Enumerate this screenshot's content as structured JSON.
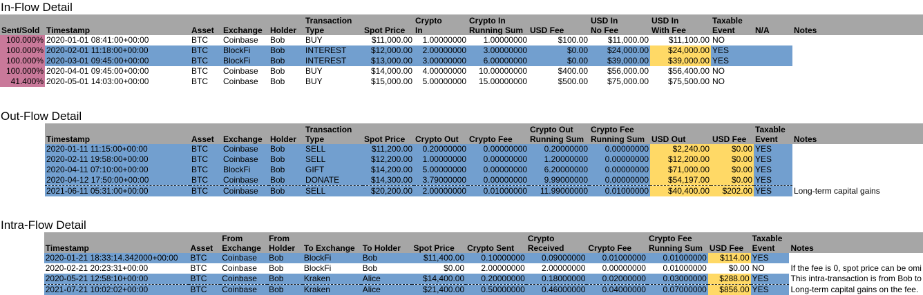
{
  "inflow": {
    "title": "In-Flow Detail",
    "headers": {
      "sent_sold": "Sent/Sold",
      "timestamp": "Timestamp",
      "asset": "Asset",
      "exchange": "Exchange",
      "holder": "Holder",
      "tx_type_1": "Transaction",
      "tx_type_2": "Type",
      "spot_price": "Spot Price",
      "crypto_in_1": "Crypto",
      "crypto_in_2": "In",
      "running_1": "Crypto In",
      "running_2": "Running Sum",
      "usd_fee": "USD Fee",
      "usd_in_nofee_1": "USD In",
      "usd_in_nofee_2": "No Fee",
      "usd_in_fee_1": "USD In",
      "usd_in_fee_2": "With Fee",
      "taxable_1": "Taxable",
      "taxable_2": "Event",
      "na": "N/A",
      "notes": "Notes"
    },
    "rows": [
      {
        "sent": "100.000%",
        "ts": "2020-01-01 08:41:00+00:00",
        "asset": "BTC",
        "exchange": "Coinbase",
        "holder": "Bob",
        "type": "BUY",
        "spot": "$11,000.00",
        "crypto": "1.00000000",
        "running": "1.00000000",
        "fee": "$100.00",
        "nofee": "$11,000.00",
        "withfee": "$11,100.00",
        "taxable": "NO"
      },
      {
        "sent": "100.000%",
        "ts": "2020-02-01 11:18:00+00:00",
        "asset": "BTC",
        "exchange": "BlockFi",
        "holder": "Bob",
        "type": "INTEREST",
        "spot": "$12,000.00",
        "crypto": "2.00000000",
        "running": "3.00000000",
        "fee": "$0.00",
        "nofee": "$24,000.00",
        "withfee": "$24,000.00",
        "taxable": "YES"
      },
      {
        "sent": "100.000%",
        "ts": "2020-03-01 09:45:00+00:00",
        "asset": "BTC",
        "exchange": "BlockFi",
        "holder": "Bob",
        "type": "INTEREST",
        "spot": "$13,000.00",
        "crypto": "3.00000000",
        "running": "6.00000000",
        "fee": "$0.00",
        "nofee": "$39,000.00",
        "withfee": "$39,000.00",
        "taxable": "YES"
      },
      {
        "sent": "100.000%",
        "ts": "2020-04-01 09:45:00+00:00",
        "asset": "BTC",
        "exchange": "Coinbase",
        "holder": "Bob",
        "type": "BUY",
        "spot": "$14,000.00",
        "crypto": "4.00000000",
        "running": "10.00000000",
        "fee": "$400.00",
        "nofee": "$56,000.00",
        "withfee": "$56,400.00",
        "taxable": "NO"
      },
      {
        "sent": "41.400%",
        "ts": "2020-05-01 14:03:00+00:00",
        "asset": "BTC",
        "exchange": "Coinbase",
        "holder": "Bob",
        "type": "BUY",
        "spot": "$15,000.00",
        "crypto": "5.00000000",
        "running": "15.00000000",
        "fee": "$500.00",
        "nofee": "$75,000.00",
        "withfee": "$75,500.00",
        "taxable": "NO"
      }
    ]
  },
  "outflow": {
    "title": "Out-Flow Detail",
    "headers": {
      "timestamp": "Timestamp",
      "asset": "Asset",
      "exchange": "Exchange",
      "holder": "Holder",
      "tx_type_1": "Transaction",
      "tx_type_2": "Type",
      "spot_price": "Spot Price",
      "crypto_out": "Crypto Out",
      "crypto_fee": "Crypto Fee",
      "out_running_1": "Crypto Out",
      "out_running_2": "Running Sum",
      "fee_running_1": "Crypto Fee",
      "fee_running_2": "Running Sum",
      "usd_out": "USD Out",
      "usd_fee": "USD Fee",
      "taxable_1": "Taxable",
      "taxable_2": "Event",
      "notes": "Notes"
    },
    "rows": [
      {
        "ts": "2020-01-11 11:15:00+00:00",
        "asset": "BTC",
        "exchange": "Coinbase",
        "holder": "Bob",
        "type": "SELL",
        "spot": "$11,200.00",
        "out": "0.20000000",
        "cfee": "0.00000000",
        "outrun": "0.20000000",
        "feerun": "0.00000000",
        "usdout": "$2,240.00",
        "usdfee": "$0.00",
        "taxable": "YES",
        "notes": ""
      },
      {
        "ts": "2020-02-11 19:58:00+00:00",
        "asset": "BTC",
        "exchange": "Coinbase",
        "holder": "Bob",
        "type": "SELL",
        "spot": "$12,200.00",
        "out": "1.00000000",
        "cfee": "0.00000000",
        "outrun": "1.20000000",
        "feerun": "0.00000000",
        "usdout": "$12,200.00",
        "usdfee": "$0.00",
        "taxable": "YES",
        "notes": ""
      },
      {
        "ts": "2020-04-11 07:10:00+00:00",
        "asset": "BTC",
        "exchange": "BlockFi",
        "holder": "Bob",
        "type": "GIFT",
        "spot": "$14,200.00",
        "out": "5.00000000",
        "cfee": "0.00000000",
        "outrun": "6.20000000",
        "feerun": "0.00000000",
        "usdout": "$71,000.00",
        "usdfee": "$0.00",
        "taxable": "YES",
        "notes": ""
      },
      {
        "ts": "2020-04-12 17:50:00+00:00",
        "asset": "BTC",
        "exchange": "Coinbase",
        "holder": "Bob",
        "type": "DONATE",
        "spot": "$14,300.00",
        "out": "3.79000000",
        "cfee": "0.00000000",
        "outrun": "9.99000000",
        "feerun": "0.00000000",
        "usdout": "$54,197.00",
        "usdfee": "$0.00",
        "taxable": "YES",
        "notes": ""
      },
      {
        "ts": "2021-06-11 05:31:00+00:00",
        "asset": "BTC",
        "exchange": "Coinbase",
        "holder": "Bob",
        "type": "SELL",
        "spot": "$20,200.00",
        "out": "2.00000000",
        "cfee": "0.01000000",
        "outrun": "11.99000000",
        "feerun": "0.01000000",
        "usdout": "$40,400.00",
        "usdfee": "$202.00",
        "taxable": "YES",
        "notes": "Long-term capital gains"
      }
    ]
  },
  "intraflow": {
    "title": "Intra-Flow Detail",
    "headers": {
      "timestamp": "Timestamp",
      "asset": "Asset",
      "from_exchange_1": "From",
      "from_exchange_2": "Exchange",
      "from_holder_1": "From",
      "from_holder_2": "Holder",
      "to_exchange": "To Exchange",
      "to_holder": "To Holder",
      "spot_price": "Spot Price",
      "crypto_sent": "Crypto Sent",
      "received_1": "Crypto",
      "received_2": "Received",
      "crypto_fee": "Crypto Fee",
      "fee_running_1": "Crypto Fee",
      "fee_running_2": "Running Sum",
      "usd_fee": "USD Fee",
      "taxable_1": "Taxable",
      "taxable_2": "Event",
      "notes": "Notes"
    },
    "rows": [
      {
        "ts": "2020-01-21 18:33:14.342000+00:00",
        "asset": "BTC",
        "fromex": "Coinbase",
        "fromholder": "Bob",
        "toex": "BlockFi",
        "toholder": "Bob",
        "spot": "$11,400.00",
        "sent": "0.10000000",
        "received": "0.09000000",
        "cfee": "0.01000000",
        "feerun": "0.01000000",
        "usdfee": "$114.00",
        "taxable": "YES",
        "notes": ""
      },
      {
        "ts": "2020-02-21 20:23:31+00:00",
        "asset": "BTC",
        "fromex": "Coinbase",
        "fromholder": "Bob",
        "toex": "BlockFi",
        "toholder": "Bob",
        "spot": "$0.00",
        "sent": "2.00000000",
        "received": "2.00000000",
        "cfee": "0.00000000",
        "feerun": "0.01000000",
        "usdfee": "$0.00",
        "taxable": "NO",
        "notes": "If the fee is 0, spot price can be omi"
      },
      {
        "ts": "2020-05-21 12:58:10+00:00",
        "asset": "BTC",
        "fromex": "Coinbase",
        "fromholder": "Bob",
        "toex": "Kraken",
        "toholder": "Alice",
        "spot": "$14,400.00",
        "sent": "0.20000000",
        "received": "0.18000000",
        "cfee": "0.02000000",
        "feerun": "0.03000000",
        "usdfee": "$288.00",
        "taxable": "YES",
        "notes": "This intra-transaction is from Bob to"
      },
      {
        "ts": "2021-07-21 10:02:02+00:00",
        "asset": "BTC",
        "fromex": "Coinbase",
        "fromholder": "Bob",
        "toex": "Kraken",
        "toholder": "Alice",
        "spot": "$21,400.00",
        "sent": "0.50000000",
        "received": "0.46000000",
        "cfee": "0.04000000",
        "feerun": "0.07000000",
        "usdfee": "$856.00",
        "taxable": "YES",
        "notes": "Long-term capital gains on the fee."
      }
    ]
  }
}
